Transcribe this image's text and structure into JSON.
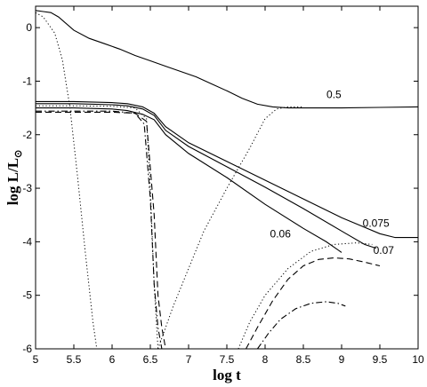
{
  "chart_data": {
    "type": "line",
    "xlabel": "log t",
    "ylabel_main": "log L/L",
    "ylabel_sub": "⊙",
    "xlim": [
      5,
      10
    ],
    "ylim": [
      -6,
      0.4
    ],
    "xticks": [
      "5",
      "5.5",
      "6",
      "6.5",
      "7",
      "7.5",
      "8",
      "8.5",
      "9",
      "9.5",
      "10"
    ],
    "yticks": [
      "0",
      "-1",
      "-2",
      "-3",
      "-4",
      "-5",
      "-6"
    ],
    "grid": false,
    "legend": "none",
    "curve_labels": [
      {
        "text": "0.5",
        "x": 8.9,
        "y": -1.32
      },
      {
        "text": "0.075",
        "x": 9.45,
        "y": -3.72
      },
      {
        "text": "0.07",
        "x": 9.55,
        "y": -4.23
      },
      {
        "text": "0.06",
        "x": 8.2,
        "y": -3.92
      }
    ],
    "series": [
      {
        "style": "solid",
        "x": [
          5,
          5.1,
          5.2,
          5.3,
          5.5,
          5.7,
          5.9,
          6.1,
          6.3,
          6.5,
          6.7,
          6.9,
          7.1,
          7.3,
          7.5,
          7.7,
          7.9,
          8.1,
          8.3,
          8.6,
          9.0,
          9.5,
          10.0
        ],
        "y": [
          0.32,
          0.3,
          0.28,
          0.2,
          -0.05,
          -0.2,
          -0.3,
          -0.4,
          -0.52,
          -0.62,
          -0.72,
          -0.82,
          -0.92,
          -1.05,
          -1.18,
          -1.32,
          -1.43,
          -1.48,
          -1.5,
          -1.5,
          -1.5,
          -1.49,
          -1.48
        ]
      },
      {
        "style": "solid",
        "x": [
          5,
          5.5,
          6.0,
          6.2,
          6.4,
          6.55,
          6.7,
          7.0,
          7.5,
          8.0,
          8.5,
          9.0,
          9.5,
          9.7,
          10.0
        ],
        "y": [
          -1.38,
          -1.38,
          -1.4,
          -1.42,
          -1.48,
          -1.6,
          -1.85,
          -2.15,
          -2.5,
          -2.85,
          -3.2,
          -3.55,
          -3.85,
          -3.92,
          -3.92
        ]
      },
      {
        "style": "solid",
        "x": [
          5,
          5.5,
          6.0,
          6.2,
          6.4,
          6.55,
          6.7,
          7.0,
          7.5,
          8.0,
          8.5,
          9.0,
          9.3,
          9.45
        ],
        "y": [
          -1.42,
          -1.42,
          -1.44,
          -1.46,
          -1.52,
          -1.64,
          -1.92,
          -2.22,
          -2.6,
          -2.98,
          -3.38,
          -3.8,
          -4.05,
          -4.12
        ]
      },
      {
        "style": "solid",
        "x": [
          5,
          5.5,
          6.0,
          6.2,
          6.4,
          6.55,
          6.7,
          7.0,
          7.5,
          8.0,
          8.5,
          8.8,
          9.0
        ],
        "y": [
          -1.5,
          -1.5,
          -1.52,
          -1.55,
          -1.62,
          -1.72,
          -2.0,
          -2.35,
          -2.8,
          -3.3,
          -3.75,
          -4.0,
          -4.2
        ]
      },
      {
        "style": "dashed",
        "x": [
          5,
          5.5,
          6.0,
          6.3,
          6.45,
          6.55,
          6.6,
          6.65,
          6.7
        ],
        "y": [
          -1.58,
          -1.58,
          -1.58,
          -1.6,
          -1.75,
          -3.5,
          -5.0,
          -5.6,
          -6.0
        ]
      },
      {
        "style": "dashdot",
        "x": [
          5,
          5.5,
          6.0,
          6.3,
          6.42,
          6.5,
          6.55,
          6.6,
          6.65
        ],
        "y": [
          -1.56,
          -1.56,
          -1.56,
          -1.6,
          -1.8,
          -3.2,
          -4.8,
          -5.6,
          -6.0
        ]
      },
      {
        "style": "dotted",
        "x": [
          5,
          5.1,
          5.25,
          5.35,
          5.45,
          5.55,
          5.65,
          5.75,
          5.8
        ],
        "y": [
          0.28,
          0.2,
          -0.1,
          -0.6,
          -1.5,
          -2.8,
          -4.2,
          -5.5,
          -6.0
        ]
      },
      {
        "style": "dotted",
        "x": [
          5,
          5.5,
          6.0,
          6.3,
          6.45,
          6.5,
          6.55,
          6.6
        ],
        "y": [
          -1.46,
          -1.46,
          -1.47,
          -1.5,
          -1.7,
          -3.0,
          -4.8,
          -6.0
        ]
      },
      {
        "style": "dotted",
        "x": [
          6.6,
          6.8,
          7.0,
          7.2,
          7.5,
          7.8,
          8.0,
          8.15,
          8.3,
          8.5
        ],
        "y": [
          -6.0,
          -5.2,
          -4.5,
          -3.8,
          -3.0,
          -2.25,
          -1.7,
          -1.52,
          -1.48,
          -1.48
        ]
      },
      {
        "style": "dotted",
        "x": [
          7.65,
          7.8,
          8.0,
          8.3,
          8.6,
          8.9,
          9.2,
          9.4
        ],
        "y": [
          -6.0,
          -5.5,
          -5.0,
          -4.5,
          -4.18,
          -4.05,
          -4.02,
          -4.05
        ]
      },
      {
        "style": "dashed",
        "x": [
          7.75,
          7.9,
          8.1,
          8.3,
          8.5,
          8.7,
          8.9,
          9.1,
          9.3,
          9.5
        ],
        "y": [
          -6.0,
          -5.6,
          -5.1,
          -4.7,
          -4.45,
          -4.33,
          -4.3,
          -4.32,
          -4.38,
          -4.45
        ]
      },
      {
        "style": "dashdot",
        "x": [
          7.9,
          8.05,
          8.2,
          8.4,
          8.6,
          8.8,
          8.95,
          9.05
        ],
        "y": [
          -6.0,
          -5.7,
          -5.45,
          -5.25,
          -5.15,
          -5.12,
          -5.15,
          -5.2
        ]
      }
    ]
  }
}
